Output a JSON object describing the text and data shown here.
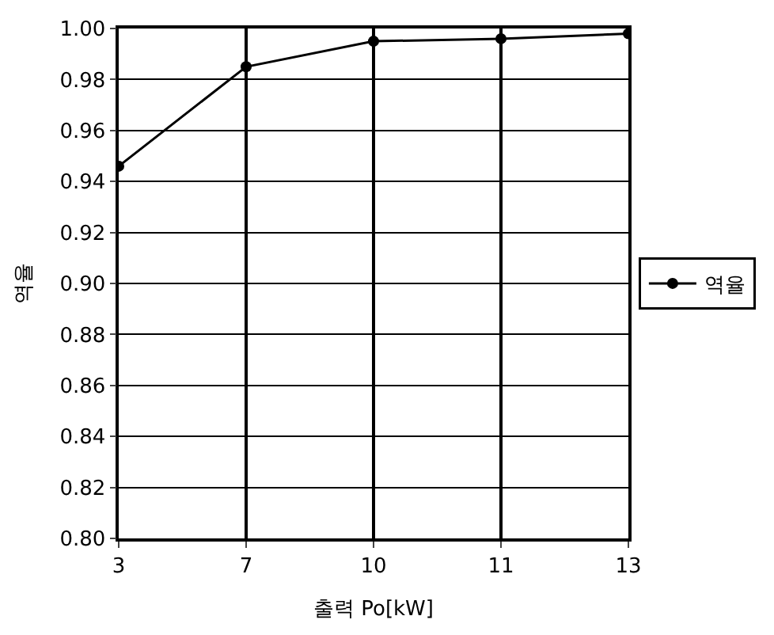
{
  "chart_data": {
    "type": "line",
    "xlabel": "출력 Po[kW]",
    "ylabel": "역율",
    "categories": [
      "3",
      "7",
      "10",
      "11",
      "13"
    ],
    "series": [
      {
        "name": "역율",
        "color": "#000000",
        "values": [
          0.946,
          0.985,
          0.995,
          0.996,
          0.998
        ]
      }
    ],
    "ylim": [
      0.8,
      1.0
    ],
    "yticks": [
      {
        "value": 0.8,
        "label": "0.80"
      },
      {
        "value": 0.82,
        "label": "0.82"
      },
      {
        "value": 0.84,
        "label": "0.84"
      },
      {
        "value": 0.86,
        "label": "0.86"
      },
      {
        "value": 0.88,
        "label": "0.88"
      },
      {
        "value": 0.9,
        "label": "0.90"
      },
      {
        "value": 0.92,
        "label": "0.92"
      },
      {
        "value": 0.94,
        "label": "0.94"
      },
      {
        "value": 0.96,
        "label": "0.96"
      },
      {
        "value": 0.98,
        "label": "0.98"
      },
      {
        "value": 1.0,
        "label": "1.00"
      }
    ],
    "grid": true,
    "legend": "right",
    "marker": "circle",
    "line_style": "solid"
  }
}
